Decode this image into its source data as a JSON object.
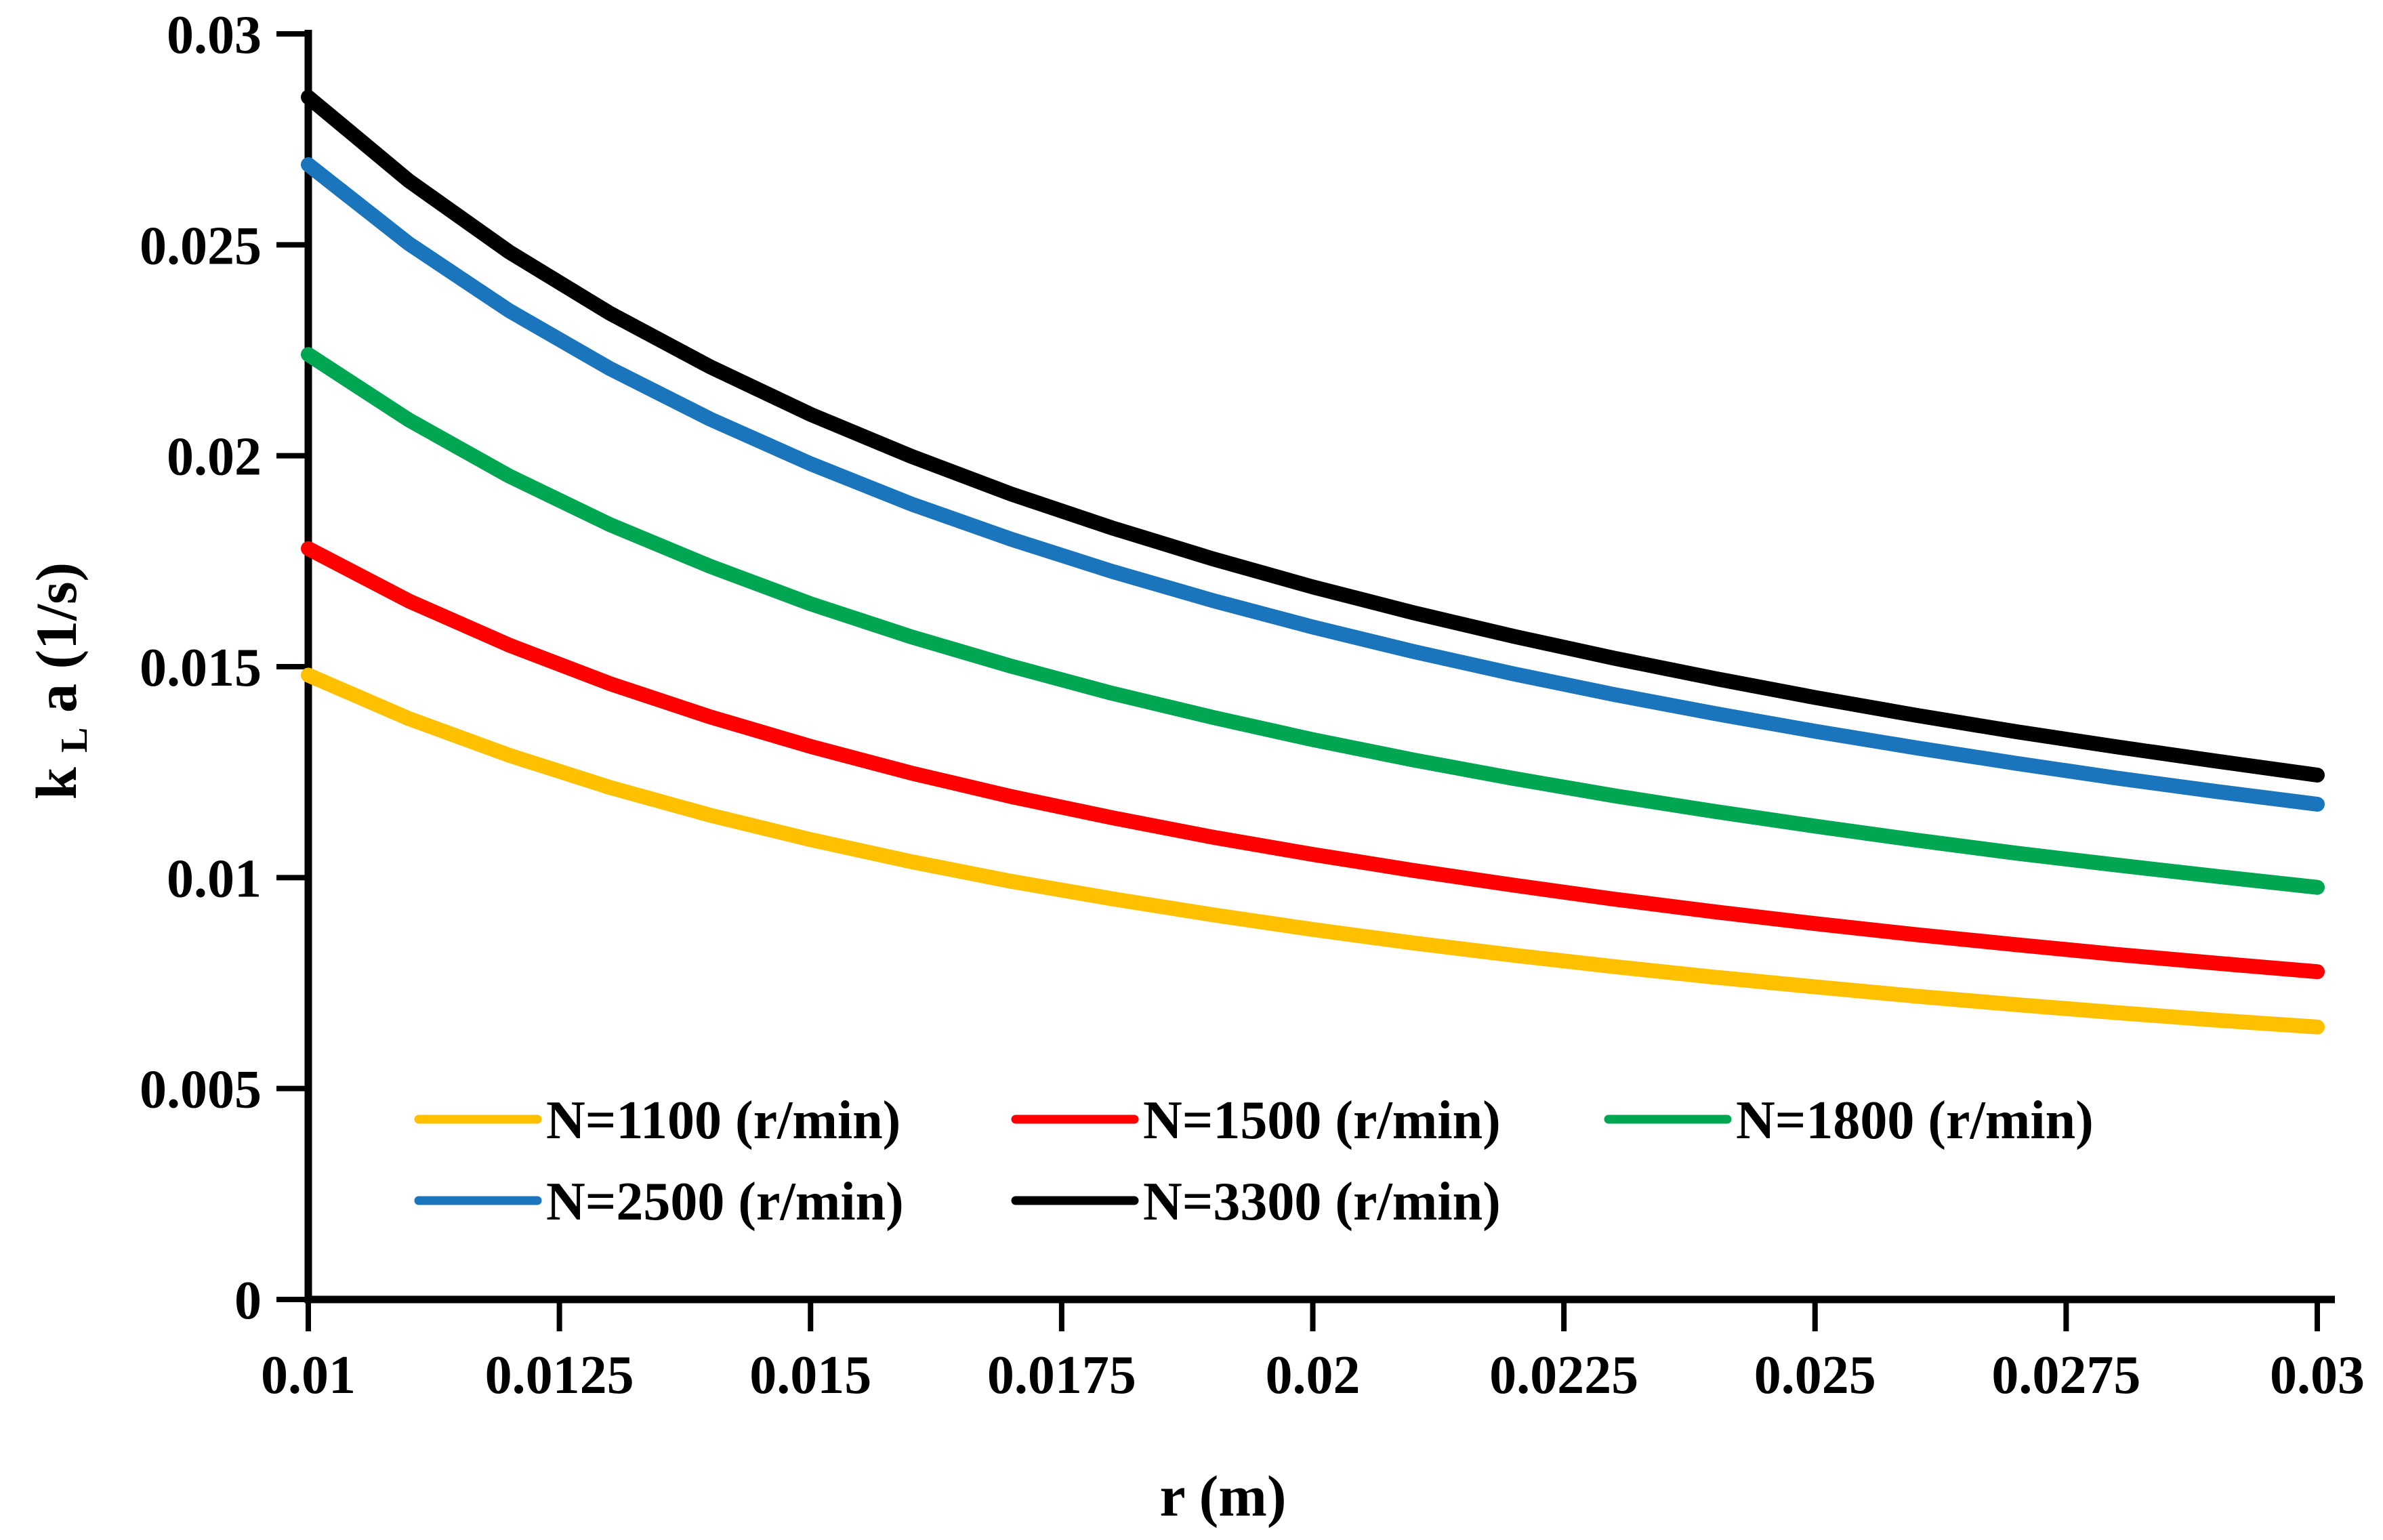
{
  "chart_data": {
    "type": "line",
    "title": "",
    "xlabel": "r (m)",
    "ylabel": "kLa (1/s)",
    "ylabel_parts": {
      "pre": "k",
      "sub": "L",
      "post": "a (1/s)"
    },
    "xlim": [
      0.01,
      0.03
    ],
    "ylim": [
      0,
      0.03
    ],
    "grid": false,
    "legend_position": "inside-bottom-left-two-rows",
    "x_ticks": [
      0.01,
      0.0125,
      0.015,
      0.0175,
      0.02,
      0.0225,
      0.025,
      0.0275,
      0.03
    ],
    "x_tick_labels": [
      "0.01",
      "0.0125",
      "0.015",
      "0.0175",
      "0.02",
      "0.0225",
      "0.025",
      "0.0275",
      "0.03"
    ],
    "y_ticks": [
      0,
      0.005,
      0.01,
      0.015,
      0.02,
      0.025,
      0.03
    ],
    "y_tick_labels": [
      "0",
      "0.005",
      "0.01",
      "0.015",
      "0.02",
      "0.025",
      "0.03"
    ],
    "x": [
      0.01,
      0.011,
      0.012,
      0.013,
      0.014,
      0.015,
      0.016,
      0.017,
      0.018,
      0.019,
      0.02,
      0.021,
      0.022,
      0.023,
      0.024,
      0.025,
      0.026,
      0.027,
      0.028,
      0.029,
      0.03
    ],
    "series": [
      {
        "name": "N=1100 (r/min)",
        "color": "#FFC000",
        "values": [
          0.0148,
          0.01377,
          0.0129,
          0.01214,
          0.01148,
          0.0109,
          0.01038,
          0.00991,
          0.0095,
          0.00912,
          0.00877,
          0.00845,
          0.00816,
          0.00789,
          0.00764,
          0.00741,
          0.00719,
          0.00699,
          0.0068,
          0.00662,
          0.00646
        ]
      },
      {
        "name": "N=1500 (r/min)",
        "color": "#FF0000",
        "values": [
          0.0178,
          0.01656,
          0.01551,
          0.0146,
          0.01381,
          0.01311,
          0.01248,
          0.01192,
          0.01142,
          0.01096,
          0.01055,
          0.01017,
          0.00982,
          0.00949,
          0.00919,
          0.00891,
          0.00865,
          0.00841,
          0.00818,
          0.00797,
          0.00777
        ]
      },
      {
        "name": "N=1800 (r/min)",
        "color": "#00A651",
        "values": [
          0.0224,
          0.02085,
          0.01952,
          0.01837,
          0.01738,
          0.01649,
          0.01571,
          0.01501,
          0.01437,
          0.0138,
          0.01327,
          0.01279,
          0.01235,
          0.01194,
          0.01157,
          0.01122,
          0.01089,
          0.01058,
          0.0103,
          0.01003,
          0.00977
        ]
      },
      {
        "name": "N=2500 (r/min)",
        "color": "#1B75BC",
        "values": [
          0.0269,
          0.02503,
          0.02344,
          0.02207,
          0.02087,
          0.01981,
          0.01886,
          0.01802,
          0.01726,
          0.01657,
          0.01594,
          0.01536,
          0.01483,
          0.01434,
          0.01389,
          0.01347,
          0.01308,
          0.01271,
          0.01236,
          0.01204,
          0.01174
        ]
      },
      {
        "name": "N=3300 (r/min)",
        "color": "#000000",
        "values": [
          0.0285,
          0.02652,
          0.02483,
          0.02338,
          0.02211,
          0.02098,
          0.01999,
          0.01909,
          0.01829,
          0.01756,
          0.01689,
          0.01628,
          0.01572,
          0.0152,
          0.01472,
          0.01427,
          0.01385,
          0.01346,
          0.0131,
          0.01276,
          0.01243
        ]
      }
    ],
    "legend_rows": [
      [
        0,
        1,
        2
      ],
      [
        3,
        4
      ]
    ]
  }
}
